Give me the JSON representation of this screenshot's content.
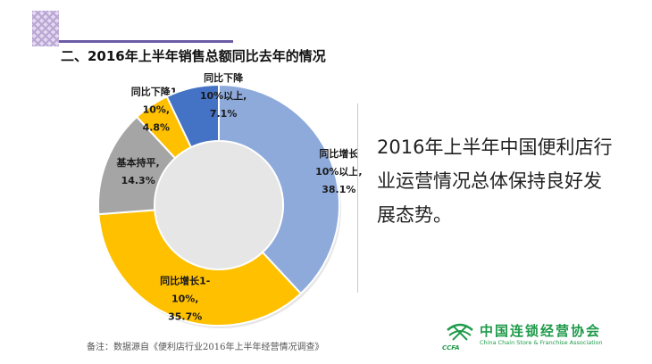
{
  "slide": {
    "title": "二、2016年上半年销售总额同比去年的情况",
    "summary": "2016年上半年中国便利店行业运营情况总体保持良好发展态势。",
    "footnote": "备注：数据源自《便利店行业2016年上半年经营情况调查》"
  },
  "logo": {
    "name": "中国连锁经营协会",
    "subtitle": "China Chain Store & Franchise Association",
    "abbr": "CCFA",
    "icon": "ccfa-logo-icon",
    "color": "#1f9a4a"
  },
  "chart_data": {
    "type": "pie",
    "donut": true,
    "title": "二、2016年上半年销售总额同比去年的情况",
    "slices": [
      {
        "label": "同比增长10%以上",
        "lines": [
          "同比增长",
          "10%以上,",
          "38.1%"
        ],
        "value": 38.1,
        "color": "#8eaadb"
      },
      {
        "label": "同比增长1-10%",
        "lines": [
          "同比增长1-",
          "10%,",
          "35.7%"
        ],
        "value": 35.7,
        "color": "#ffc000"
      },
      {
        "label": "基本持平",
        "lines": [
          "基本持平,",
          "14.3%"
        ],
        "value": 14.3,
        "color": "#a5a5a5"
      },
      {
        "label": "同比下降1-10%",
        "lines": [
          "同比下降1-",
          "10%,",
          "4.8%"
        ],
        "value": 4.8,
        "color": "#ffc000"
      },
      {
        "label": "同比下降10%以上",
        "lines": [
          "同比下降",
          "10%以上,",
          "7.1%"
        ],
        "value": 7.1,
        "color": "#4472c4"
      }
    ]
  }
}
